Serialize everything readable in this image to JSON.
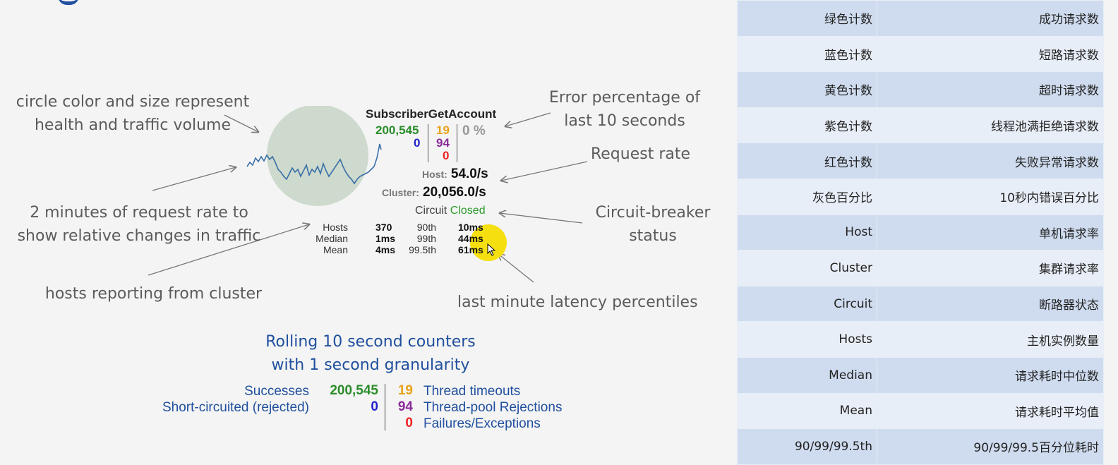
{
  "annotations": {
    "circle_desc_1": "circle color and size represent",
    "circle_desc_2": "health and traffic volume",
    "error_pct_1": "Error percentage of",
    "error_pct_2": "last 10 seconds",
    "request_rate": "Request rate",
    "rate_desc_1": "2 minutes of request rate to",
    "rate_desc_2": "show relative changes in traffic",
    "breaker_1": "Circuit-breaker",
    "breaker_2": "status",
    "hosts_reporting": "hosts reporting from cluster",
    "latency": "last minute latency percentiles"
  },
  "panel": {
    "name": "SubscriberGetAccount",
    "successes": "200,545",
    "short_circuited": "0",
    "timeouts": "19",
    "rejections": "94",
    "failures": "0",
    "error_pct": "0 %",
    "host_label": "Host:",
    "host_rate": "54.0/s",
    "cluster_label": "Cluster:",
    "cluster_rate": "20,056.0/s",
    "circuit_label": "Circuit",
    "circuit_status": "Closed",
    "stats": [
      {
        "label": "Hosts",
        "value": "370",
        "pct": "90th",
        "ms": "10ms"
      },
      {
        "label": "Median",
        "value": "1ms",
        "pct": "99th",
        "ms": "44ms"
      },
      {
        "label": "Mean",
        "value": "4ms",
        "pct": "99.5th",
        "ms": "61ms"
      }
    ]
  },
  "legend": {
    "title_1": "Rolling 10 second counters",
    "title_2": "with 1 second granularity",
    "successes_label": "Successes",
    "successes_value": "200,545",
    "short_label": "Short-circuited (rejected)",
    "short_value": "0",
    "timeouts_value": "19",
    "timeouts_label": "Thread timeouts",
    "rejections_value": "94",
    "rejections_label": "Thread-pool Rejections",
    "failures_value": "0",
    "failures_label": "Failures/Exceptions"
  },
  "table": [
    {
      "key": "绿色计数",
      "val": "成功请求数"
    },
    {
      "key": "蓝色计数",
      "val": "短路请求数"
    },
    {
      "key": "黄色计数",
      "val": "超时请求数"
    },
    {
      "key": "紫色计数",
      "val": "线程池满拒绝请求数"
    },
    {
      "key": "红色计数",
      "val": "失败异常请求数"
    },
    {
      "key": "灰色百分比",
      "val": "10秒内错误百分比"
    },
    {
      "key": "Host",
      "val": "单机请求率"
    },
    {
      "key": "Cluster",
      "val": "集群请求率"
    },
    {
      "key": "Circuit",
      "val": "断路器状态"
    },
    {
      "key": "Hosts",
      "val": "主机实例数量"
    },
    {
      "key": "Median",
      "val": "请求耗时中位数"
    },
    {
      "key": "Mean",
      "val": "请求耗时平均值"
    },
    {
      "key": "90/99/99.5th",
      "val": "90/99/99.5百分位耗时"
    }
  ]
}
